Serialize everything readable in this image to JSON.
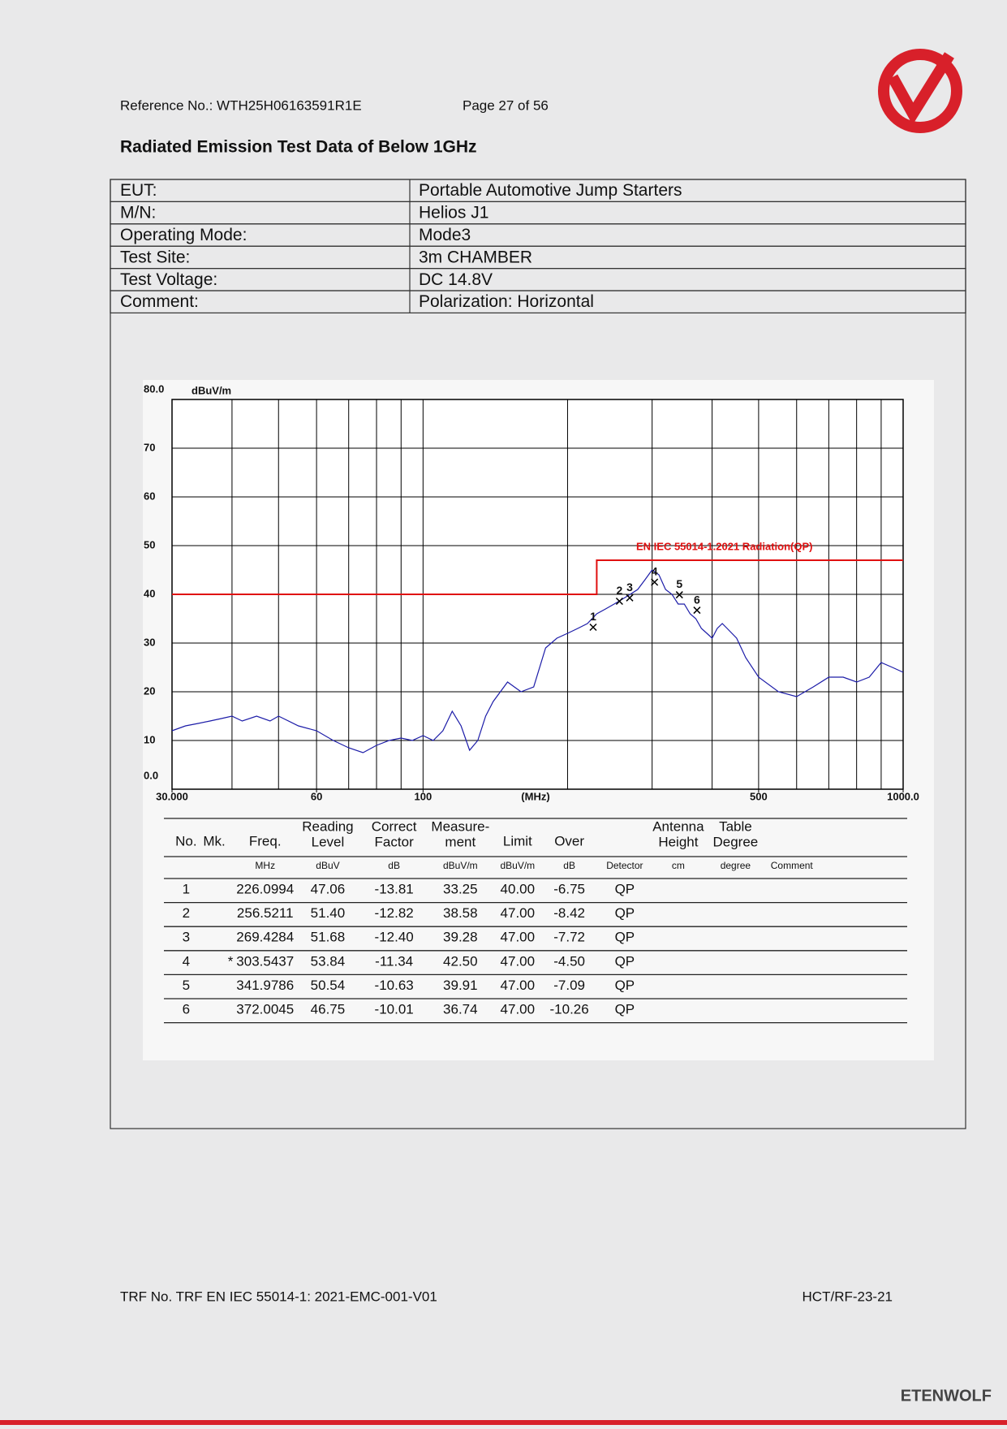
{
  "header": {
    "reference": "Reference No.: WTH25H06163591R1E",
    "page": "Page 27 of 56"
  },
  "title": "Radiated Emission Test Data of Below 1GHz",
  "info": [
    [
      "EUT:",
      "Portable Automotive Jump Starters"
    ],
    [
      "M/N:",
      "Helios J1"
    ],
    [
      "Operating Mode:",
      "Mode3"
    ],
    [
      "Test Site:",
      "3m CHAMBER"
    ],
    [
      "Test Voltage:",
      "DC 14.8V"
    ],
    [
      "Comment:",
      "Polarization: Horizontal"
    ]
  ],
  "chart_data": {
    "type": "line",
    "y_unit": "dBuV/m",
    "x_unit": "(MHz)",
    "xlog": true,
    "grid": true,
    "xlim": [
      30,
      1000
    ],
    "ylim": [
      0,
      80
    ],
    "xticks": [
      {
        "value": 30,
        "label": "30.000"
      },
      60,
      100,
      500,
      {
        "value": 1000,
        "label": "1000.0"
      }
    ],
    "yticks": [
      {
        "value": 0,
        "label": "0.0"
      },
      10,
      20,
      30,
      40,
      50,
      60,
      70,
      {
        "value": 80,
        "label": "80.0"
      }
    ],
    "series": [
      {
        "name": "EN IEC 55014-1.2021 Radiation(QP)",
        "color": "#e01010",
        "x": [
          30,
          230,
          230,
          1000
        ],
        "values": [
          40,
          40,
          47,
          47
        ]
      },
      {
        "color": "#1c1ca8",
        "x": [
          30,
          32,
          34,
          36,
          38,
          40,
          42,
          45,
          48,
          50,
          55,
          60,
          65,
          70,
          75,
          80,
          85,
          90,
          95,
          100,
          105,
          110,
          115,
          120,
          125,
          130,
          135,
          140,
          150,
          160,
          170,
          180,
          190,
          200,
          210,
          220,
          230,
          240,
          250,
          260,
          270,
          280,
          290,
          300,
          310,
          320,
          330,
          340,
          350,
          360,
          370,
          380,
          390,
          400,
          410,
          420,
          430,
          450,
          470,
          500,
          550,
          600,
          650,
          700,
          750,
          800,
          850,
          900,
          950,
          1000
        ],
        "values": [
          12,
          13,
          13.5,
          14,
          14.5,
          15,
          14,
          15,
          14,
          15,
          13,
          12,
          10,
          8.5,
          7.5,
          9,
          10,
          10.5,
          10,
          11,
          10,
          12,
          16,
          13,
          8,
          10,
          15,
          18,
          22,
          20,
          21,
          29,
          31,
          32,
          33,
          34,
          36,
          37,
          38,
          39,
          40,
          41,
          43,
          45,
          44,
          41,
          40,
          38,
          38,
          36,
          35,
          33,
          32,
          31,
          33,
          34,
          33,
          31,
          27,
          23,
          20,
          19,
          21,
          23,
          23,
          22,
          23,
          26,
          25,
          24
        ]
      }
    ],
    "markers": {
      "x": [
        226.0994,
        256.5211,
        269.4284,
        303.5437,
        341.9786,
        372.0045
      ],
      "values": [
        33.25,
        38.58,
        39.28,
        42.5,
        39.91,
        36.74
      ],
      "labels": [
        "1",
        "2",
        "3",
        "4",
        "5",
        "6"
      ]
    }
  },
  "table": {
    "header": [
      [
        "No."
      ],
      [
        "Mk."
      ],
      [
        "Freq."
      ],
      [
        "Reading",
        "Level"
      ],
      [
        "Correct",
        "Factor"
      ],
      [
        "Measure-",
        "ment"
      ],
      [
        "Limit"
      ],
      [
        "Over"
      ],
      [],
      [
        "Antenna",
        "Height"
      ],
      [
        "Table",
        "Degree"
      ],
      []
    ],
    "units": [
      null,
      null,
      "MHz",
      "dBuV",
      "dB",
      "dBuV/m",
      "dBuV/m",
      "dB",
      "Detector",
      "cm",
      "degree",
      "Comment"
    ],
    "rows": [
      [
        "1",
        null,
        "226.0994",
        "47.06",
        "-13.81",
        "33.25",
        "40.00",
        "-6.75",
        "QP",
        null,
        null,
        null
      ],
      [
        "2",
        null,
        "256.5211",
        "51.40",
        "-12.82",
        "38.58",
        "47.00",
        "-8.42",
        "QP",
        null,
        null,
        null
      ],
      [
        "3",
        null,
        "269.4284",
        "51.68",
        "-12.40",
        "39.28",
        "47.00",
        "-7.72",
        "QP",
        null,
        null,
        null
      ],
      [
        "4",
        "*",
        "303.5437",
        "53.84",
        "-11.34",
        "42.50",
        "47.00",
        "-4.50",
        "QP",
        null,
        null,
        null
      ],
      [
        "5",
        null,
        "341.9786",
        "50.54",
        "-10.63",
        "39.91",
        "47.00",
        "-7.09",
        "QP",
        null,
        null,
        null
      ],
      [
        "6",
        null,
        "372.0045",
        "46.75",
        "-10.01",
        "36.74",
        "47.00",
        "-10.26",
        "QP",
        null,
        null,
        null
      ]
    ]
  },
  "footer": {
    "trf": "TRF No. TRF EN IEC 55014-1: 2021-EMC-001-V01",
    "code": "HCT/RF-23-21",
    "brand": "ETENWOLF"
  }
}
